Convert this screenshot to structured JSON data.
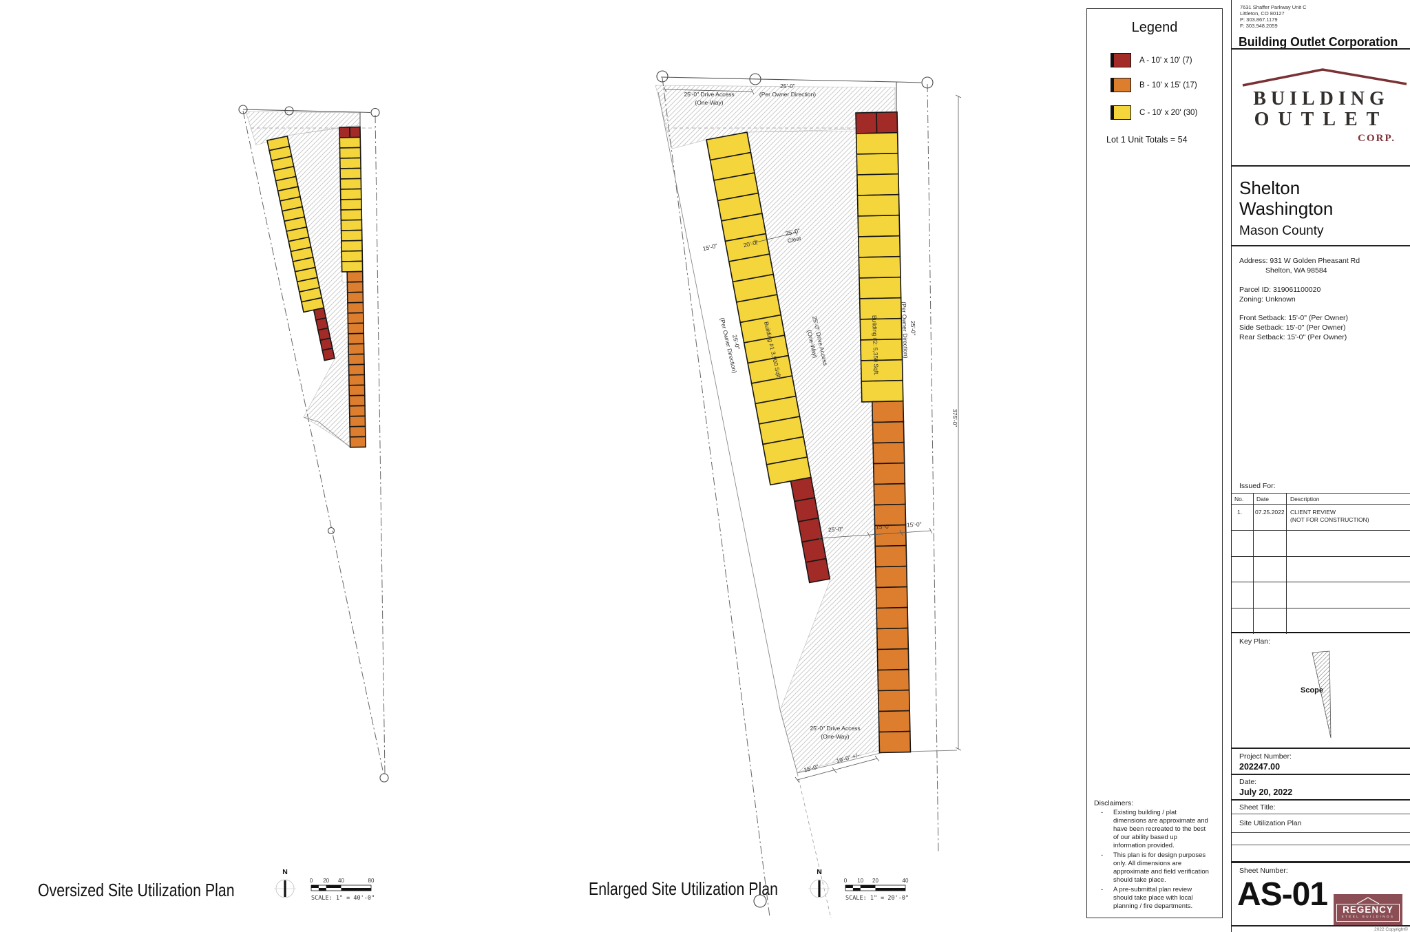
{
  "colors": {
    "unit_a": "#A32B27",
    "unit_b": "#DD7E2E",
    "unit_c": "#F4D53C",
    "logo_maroon": "#7A3034",
    "regency_maroon": "#8B4E55"
  },
  "legend": {
    "title": "Legend",
    "items": [
      {
        "label": "A - 10' x 10' (7)",
        "color": "#A32B27"
      },
      {
        "label": "B - 10' x 15' (17)",
        "color": "#DD7E2E"
      },
      {
        "label": "C - 10' x 20' (30)",
        "color": "#F4D53C"
      }
    ],
    "total": "Lot 1 Unit Totals = 54"
  },
  "disclaimers": {
    "title": "Disclaimers:",
    "items": [
      "Existing building / plat dimensions are approximate and have been recreated to the best of our ability based up information provided.",
      "This plan is for design purposes only.  All dimensions are approximate and field verification should take place.",
      "A pre-submittal plan review should take place with local planning / fire departments."
    ]
  },
  "plans": {
    "oversized": {
      "title": "Oversized Site Utilization Plan",
      "north": "N",
      "scale_ticks": [
        "0",
        "20",
        "40",
        "80"
      ],
      "scale_label": "SCALE:  1\" = 40'-0\""
    },
    "enlarged": {
      "title": "Enlarged Site Utilization Plan",
      "north": "N",
      "scale_ticks": [
        "0",
        "10",
        "20",
        "40"
      ],
      "scale_label": "SCALE:  1\" = 20'-0\""
    }
  },
  "site": {
    "building1": {
      "label": "Building #1  3,900 Sqft.",
      "segments": [
        {
          "type": "C",
          "count": 17
        },
        {
          "type": "A",
          "count": 5
        }
      ]
    },
    "building2": {
      "label": "Building #2: 5,350 Sqft.",
      "segments": [
        {
          "type": "A",
          "count": 2,
          "row": true
        },
        {
          "type": "C",
          "count": 13
        },
        {
          "type": "B",
          "count": 17
        }
      ]
    },
    "labels": {
      "drive_top_1": "25'-0\" Drive Access",
      "drive_top_2": "(One-Way)",
      "owner_top_1": "25'-0\"",
      "owner_top_2": "(Per Owner Direction)",
      "dim_15": "15'-0\"",
      "dim_20": "20'-0\"",
      "clear_1": "25'-0\"",
      "clear_2": "Clear",
      "drive_mid_1": "25'-0\" Drive Access",
      "drive_mid_2": "(One-Way)",
      "owner_west_1": "25'-0\"",
      "owner_west_2": "(Per Owner Direction)",
      "owner_east_1": "25'-0\"",
      "owner_east_2": "(Per Owner Direction)",
      "dim_375": "375'-0\"",
      "dim_mid_25": "25'-0\"",
      "dim_mid_15a": "15'-0\"",
      "dim_mid_15b": "15'-0\"",
      "drive_bot_1": "25'-0\" Drive Access",
      "drive_bot_2": "(One-Way)",
      "dim_bot_15": "15'-0\"",
      "dim_bot_19": "19'-0\" +/-"
    }
  },
  "titleblock": {
    "contact": [
      "7631 Shaffer Parkway Unit C",
      "Littleton, CO 80127",
      "P: 303.867.1179",
      "F: 303.948.2059"
    ],
    "company": "Building Outlet Corporation",
    "logo": {
      "line1": "BUILDING",
      "line2": "OUTLET",
      "line3": "CORP."
    },
    "city": "Shelton",
    "state": "Washington",
    "county": "Mason County",
    "address1": "Address: 931 W Golden Pheasant Rd",
    "address2": "Shelton, WA 98584",
    "parcel": "Parcel ID: 319061100020",
    "zoning": "Zoning: Unknown",
    "setbacks": [
      "Front Setback: 15'-0\" (Per Owner)",
      "Side Setback: 15'-0\" (Per Owner)",
      "Rear Setback: 15'-0\" (Per Owner)"
    ],
    "issued_label": "Issued For:",
    "issued_headers": [
      "No.",
      "Date",
      "Description"
    ],
    "issued_row1": {
      "no": "1.",
      "date": "07.25.2022",
      "desc1": "CLIENT REVIEW",
      "desc2": "(NOT FOR CONSTRUCTION)"
    },
    "keyplan_label": "Key Plan:",
    "scope_label": "Scope",
    "project_number_label": "Project Number:",
    "project_number": "202247.00",
    "date_label": "Date:",
    "date": "July 20, 2022",
    "sheet_title_label": "Sheet Title:",
    "sheet_title": "Site Utilization Plan",
    "sheet_number_label": "Sheet Number:",
    "sheet_number": "AS-01",
    "regency": {
      "name": "REGENCY",
      "sub": "STEEL BUILDINGS"
    },
    "copyright": "2022 Copyright©"
  }
}
